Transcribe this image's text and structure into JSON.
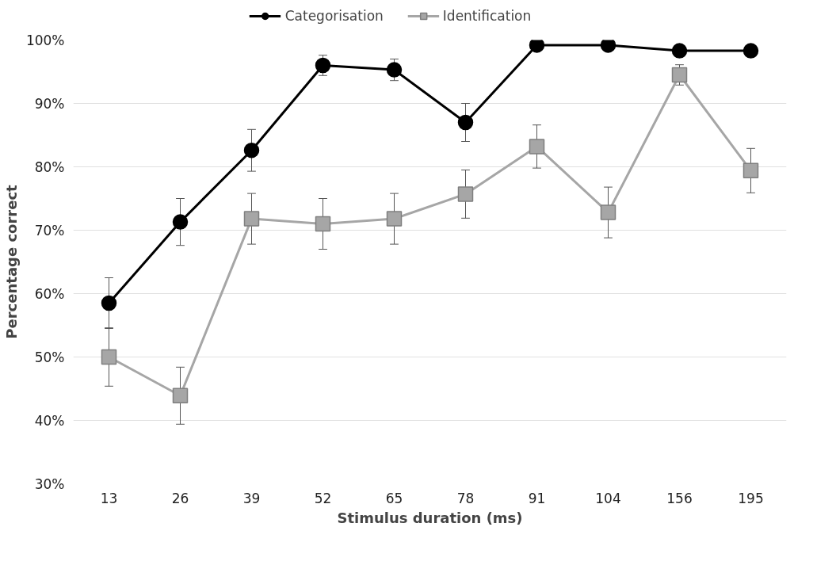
{
  "chart_data": {
    "type": "line",
    "xlabel": "Stimulus duration (ms)",
    "ylabel": "Percentage correct",
    "categories": [
      "13",
      "26",
      "39",
      "52",
      "65",
      "78",
      "91",
      "104",
      "156",
      "195"
    ],
    "ylim": [
      30,
      100
    ],
    "yticks": [
      {
        "value": 30,
        "label": "30%"
      },
      {
        "value": 40,
        "label": "40%"
      },
      {
        "value": 50,
        "label": "50%"
      },
      {
        "value": 60,
        "label": "60%"
      },
      {
        "value": 70,
        "label": "70%"
      },
      {
        "value": 80,
        "label": "80%"
      },
      {
        "value": 90,
        "label": "90%"
      },
      {
        "value": 100,
        "label": "100%"
      }
    ],
    "grid": "y",
    "legend": "top",
    "series": [
      {
        "name": "Categorisation",
        "color": "#000000",
        "marker": "circle",
        "values": [
          58.5,
          71.3,
          82.6,
          96,
          95.3,
          87,
          99.2,
          99.2,
          98.3,
          98.3
        ],
        "errors": [
          4,
          3.7,
          3.3,
          1.6,
          1.7,
          3,
          0.5,
          0.5,
          0.8,
          0.8
        ]
      },
      {
        "name": "Identification",
        "color": "#a6a6a6",
        "marker": "square",
        "values": [
          50,
          43.9,
          71.8,
          71,
          71.8,
          75.7,
          83.2,
          72.8,
          94.5,
          79.4
        ],
        "errors": [
          4.6,
          4.5,
          4,
          4,
          4,
          3.8,
          3.4,
          4,
          1.6,
          3.5
        ]
      }
    ]
  }
}
